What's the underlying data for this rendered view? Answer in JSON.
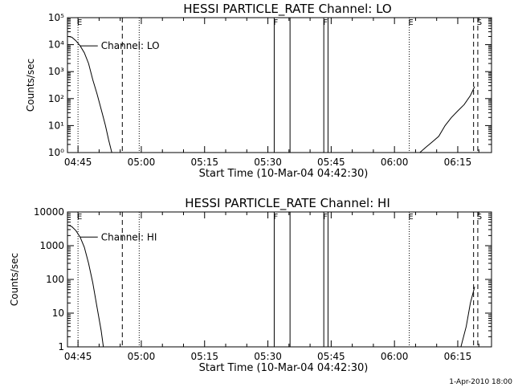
{
  "chart_data": [
    {
      "type": "line",
      "title": "HESSI PARTICLE_RATE Channel: LO",
      "xlabel": "Start Time (10-Mar-04 04:42:30)",
      "ylabel": "Counts/sec",
      "yscale": "log",
      "xlim": [
        "04:42:30",
        "06:23:00"
      ],
      "ylim": [
        1,
        100000
      ],
      "x_ticks": [
        "04:45",
        "05:00",
        "05:15",
        "05:30",
        "05:45",
        "06:00",
        "06:15"
      ],
      "y_ticks": [
        "10⁰",
        "10¹",
        "10²",
        "10³",
        "10⁴",
        "10⁵"
      ],
      "series": [
        {
          "name": "Channel: LO",
          "segments": [
            [
              [
                "04:42:45",
                20000
              ],
              [
                "04:43:30",
                19000
              ],
              [
                "04:44:30",
                14000
              ],
              [
                "04:45:30",
                9000
              ],
              [
                "04:46:30",
                5000
              ],
              [
                "04:47:30",
                2000
              ],
              [
                "04:48:30",
                500
              ],
              [
                "04:49:30",
                150
              ],
              [
                "04:50:30",
                40
              ],
              [
                "04:51:30",
                10
              ],
              [
                "04:52:15",
                3
              ],
              [
                "04:53:00",
                1
              ]
            ],
            [
              [
                "06:06:00",
                1
              ],
              [
                "06:07:30",
                1.6
              ],
              [
                "06:09:00",
                2.5
              ],
              [
                "06:10:30",
                4
              ],
              [
                "06:12:00",
                10
              ],
              [
                "06:13:30",
                20
              ],
              [
                "06:15:00",
                35
              ],
              [
                "06:16:30",
                60
              ],
              [
                "06:18:00",
                130
              ],
              [
                "06:19:00",
                280
              ]
            ]
          ]
        }
      ],
      "markers": [
        {
          "label": "E",
          "x": "04:45:00",
          "style": "dotted"
        },
        {
          "label": "",
          "x": "04:55:30",
          "style": "dashed"
        },
        {
          "label": "",
          "x": "04:59:30",
          "style": "dotted"
        },
        {
          "label": "F",
          "x": "05:31:30",
          "style": "solid"
        },
        {
          "label": "",
          "x": "05:35:15",
          "style": "solid"
        },
        {
          "label": "F",
          "x": "05:43:15",
          "style": "solid"
        },
        {
          "label": "",
          "x": "05:44:15",
          "style": "solid"
        },
        {
          "label": "E",
          "x": "06:03:30",
          "style": "dotted"
        },
        {
          "label": "",
          "x": "06:18:45",
          "style": "dashed"
        },
        {
          "label": "S",
          "x": "06:19:45",
          "style": "dashed"
        }
      ]
    },
    {
      "type": "line",
      "title": "HESSI PARTICLE_RATE Channel: HI",
      "xlabel": "Start Time (10-Mar-04 04:42:30)",
      "ylabel": "Counts/sec",
      "yscale": "log",
      "xlim": [
        "04:42:30",
        "06:23:00"
      ],
      "ylim": [
        1,
        10000
      ],
      "x_ticks": [
        "04:45",
        "05:00",
        "05:15",
        "05:30",
        "05:45",
        "06:00",
        "06:15"
      ],
      "y_ticks": [
        "1",
        "10",
        "100",
        "1000",
        "10000"
      ],
      "series": [
        {
          "name": "Channel: HI",
          "segments": [
            [
              [
                "04:42:45",
                4000
              ],
              [
                "04:43:30",
                3700
              ],
              [
                "04:44:30",
                2800
              ],
              [
                "04:45:30",
                1800
              ],
              [
                "04:46:30",
                900
              ],
              [
                "04:47:30",
                300
              ],
              [
                "04:48:30",
                80
              ],
              [
                "04:49:30",
                15
              ],
              [
                "04:50:30",
                3
              ],
              [
                "04:51:00",
                1
              ]
            ],
            [
              [
                "06:15:45",
                1
              ],
              [
                "06:17:00",
                4
              ],
              [
                "06:18:00",
                20
              ],
              [
                "06:19:00",
                60
              ]
            ]
          ]
        }
      ],
      "markers": [
        {
          "label": "E",
          "x": "04:45:00",
          "style": "dotted"
        },
        {
          "label": "",
          "x": "04:55:30",
          "style": "dashed"
        },
        {
          "label": "",
          "x": "04:59:30",
          "style": "dotted"
        },
        {
          "label": "F",
          "x": "05:31:30",
          "style": "solid"
        },
        {
          "label": "",
          "x": "05:35:15",
          "style": "solid"
        },
        {
          "label": "F",
          "x": "05:43:15",
          "style": "solid"
        },
        {
          "label": "",
          "x": "05:44:15",
          "style": "solid"
        },
        {
          "label": "E",
          "x": "06:03:30",
          "style": "dotted"
        },
        {
          "label": "",
          "x": "06:18:45",
          "style": "dashed"
        },
        {
          "label": "S",
          "x": "06:19:45",
          "style": "dashed"
        }
      ]
    }
  ],
  "footer_note": "1-Apr-2010 18:00"
}
